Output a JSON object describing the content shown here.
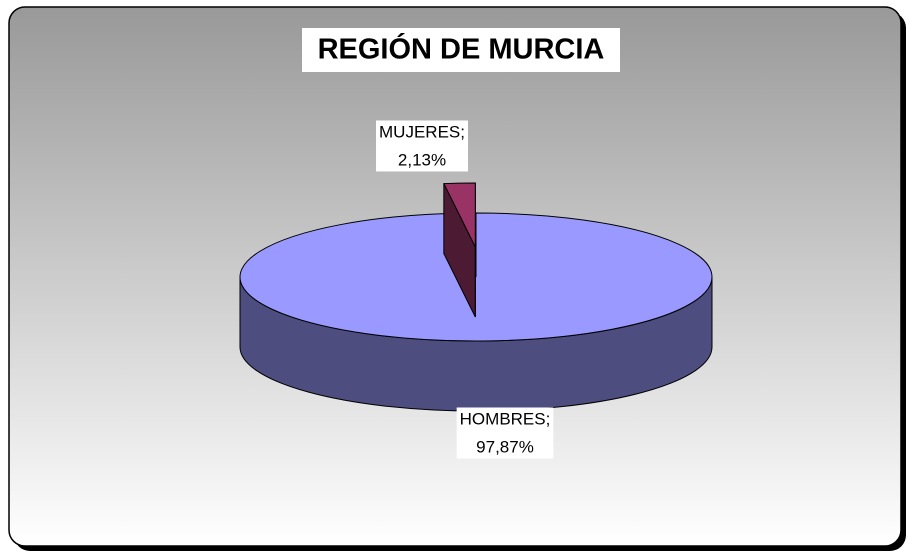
{
  "chart_data": {
    "type": "pie3d",
    "title": "REGIÓN DE MURCIA",
    "categories": [
      "HOMBRES;",
      "MUJERES;"
    ],
    "values": [
      97.87,
      2.13
    ],
    "value_labels": [
      "97,87%",
      "2,13%"
    ],
    "series": [
      {
        "name": "HOMBRES;",
        "color": "#9999ff"
      },
      {
        "name": "MUJERES;",
        "color": "#993366"
      }
    ]
  }
}
